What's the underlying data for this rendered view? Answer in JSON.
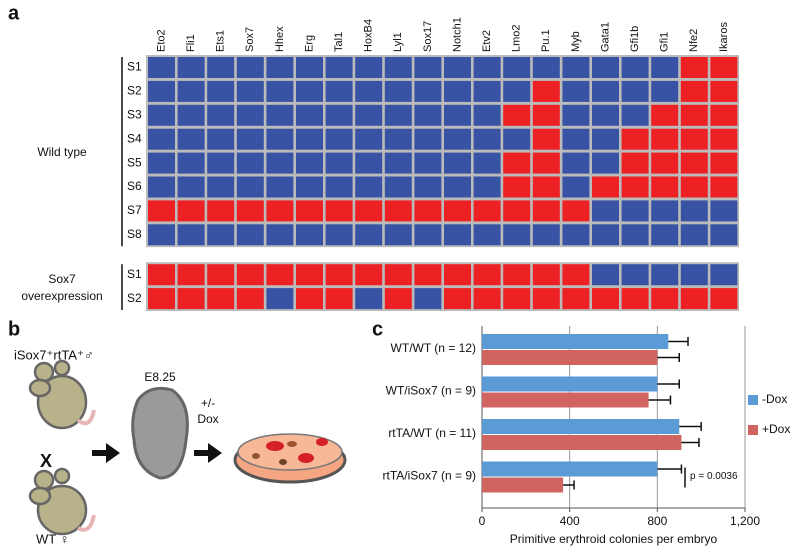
{
  "panel_a": {
    "label": "a",
    "genes": [
      "Eto2",
      "Fli1",
      "Ets1",
      "Sox7",
      "Hhex",
      "Erg",
      "Tal1",
      "HoxB4",
      "Lyl1",
      "Sox17",
      "Notch1",
      "Etv2",
      "Lmo2",
      "Pu.1",
      "Myb",
      "Gata1",
      "Gfi1b",
      "Gfi1",
      "Nfe2",
      "Ikaros"
    ],
    "groups": [
      {
        "label": [
          "Wild type"
        ],
        "rows": [
          {
            "label": "S1",
            "colors": [
              "#3953a4",
              "#3953a4",
              "#3953a4",
              "#3953a4",
              "#3953a4",
              "#3953a4",
              "#3953a4",
              "#3953a4",
              "#3953a4",
              "#3953a4",
              "#3953a4",
              "#3953a4",
              "#3953a4",
              "#3953a4",
              "#3953a4",
              "#3953a4",
              "#3953a4",
              "#3953a4",
              "#ed2024",
              "#ed2024"
            ]
          },
          {
            "label": "S2",
            "colors": [
              "#3953a4",
              "#3953a4",
              "#3953a4",
              "#3953a4",
              "#3953a4",
              "#3953a4",
              "#3953a4",
              "#3953a4",
              "#3953a4",
              "#3953a4",
              "#3953a4",
              "#3953a4",
              "#3953a4",
              "#ed2024",
              "#3953a4",
              "#3953a4",
              "#3953a4",
              "#3953a4",
              "#ed2024",
              "#ed2024"
            ]
          },
          {
            "label": "S3",
            "colors": [
              "#3953a4",
              "#3953a4",
              "#3953a4",
              "#3953a4",
              "#3953a4",
              "#3953a4",
              "#3953a4",
              "#3953a4",
              "#3953a4",
              "#3953a4",
              "#3953a4",
              "#3953a4",
              "#ed2024",
              "#ed2024",
              "#3953a4",
              "#3953a4",
              "#3953a4",
              "#ed2024",
              "#ed2024",
              "#ed2024"
            ]
          },
          {
            "label": "S4",
            "colors": [
              "#3953a4",
              "#3953a4",
              "#3953a4",
              "#3953a4",
              "#3953a4",
              "#3953a4",
              "#3953a4",
              "#3953a4",
              "#3953a4",
              "#3953a4",
              "#3953a4",
              "#3953a4",
              "#3953a4",
              "#ed2024",
              "#3953a4",
              "#3953a4",
              "#ed2024",
              "#ed2024",
              "#ed2024",
              "#ed2024"
            ]
          },
          {
            "label": "S5",
            "colors": [
              "#3953a4",
              "#3953a4",
              "#3953a4",
              "#3953a4",
              "#3953a4",
              "#3953a4",
              "#3953a4",
              "#3953a4",
              "#3953a4",
              "#3953a4",
              "#3953a4",
              "#3953a4",
              "#ed2024",
              "#ed2024",
              "#3953a4",
              "#3953a4",
              "#ed2024",
              "#ed2024",
              "#ed2024",
              "#ed2024"
            ]
          },
          {
            "label": "S6",
            "colors": [
              "#3953a4",
              "#3953a4",
              "#3953a4",
              "#3953a4",
              "#3953a4",
              "#3953a4",
              "#3953a4",
              "#3953a4",
              "#3953a4",
              "#3953a4",
              "#3953a4",
              "#3953a4",
              "#ed2024",
              "#ed2024",
              "#3953a4",
              "#ed2024",
              "#ed2024",
              "#ed2024",
              "#ed2024",
              "#ed2024"
            ]
          },
          {
            "label": "S7",
            "colors": [
              "#ed2024",
              "#ed2024",
              "#ed2024",
              "#ed2024",
              "#ed2024",
              "#ed2024",
              "#ed2024",
              "#ed2024",
              "#ed2024",
              "#ed2024",
              "#ed2024",
              "#ed2024",
              "#ed2024",
              "#ed2024",
              "#ed2024",
              "#3953a4",
              "#3953a4",
              "#3953a4",
              "#3953a4",
              "#3953a4"
            ]
          },
          {
            "label": "S8",
            "colors": [
              "#3953a4",
              "#3953a4",
              "#3953a4",
              "#3953a4",
              "#3953a4",
              "#3953a4",
              "#3953a4",
              "#3953a4",
              "#3953a4",
              "#3953a4",
              "#3953a4",
              "#3953a4",
              "#3953a4",
              "#3953a4",
              "#3953a4",
              "#3953a4",
              "#3953a4",
              "#3953a4",
              "#3953a4",
              "#3953a4"
            ]
          }
        ]
      },
      {
        "label": [
          "Sox7",
          "overexpression"
        ],
        "rows": [
          {
            "label": "S1",
            "colors": [
              "#ed2024",
              "#ed2024",
              "#ed2024",
              "#ed2024",
              "#ed2024",
              "#ed2024",
              "#ed2024",
              "#ed2024",
              "#ed2024",
              "#ed2024",
              "#ed2024",
              "#ed2024",
              "#ed2024",
              "#ed2024",
              "#ed2024",
              "#3953a4",
              "#3953a4",
              "#3953a4",
              "#3953a4",
              "#3953a4"
            ]
          },
          {
            "label": "S2",
            "colors": [
              "#ed2024",
              "#ed2024",
              "#ed2024",
              "#ed2024",
              "#3953a4",
              "#ed2024",
              "#ed2024",
              "#3953a4",
              "#ed2024",
              "#3953a4",
              "#ed2024",
              "#ed2024",
              "#ed2024",
              "#ed2024",
              "#ed2024",
              "#ed2024",
              "#ed2024",
              "#ed2024",
              "#ed2024",
              "#ed2024"
            ]
          }
        ]
      }
    ]
  },
  "panel_b": {
    "label": "b",
    "cross_parent_1": "iSox7⁺rtTA⁺♂",
    "cross_sign": "X",
    "cross_parent_2": "WT ♀",
    "stage": "E8.25",
    "treatment": [
      "+/-",
      "Dox"
    ]
  },
  "chart_data": {
    "type": "hbar",
    "panel_label": "c",
    "categories": [
      "WT/WT (n = 12)",
      "WT/iSox7 (n = 9)",
      "rtTA/WT (n = 11)",
      "rtTA/iSox7 (n = 9)"
    ],
    "series": [
      {
        "name": "-Dox",
        "color": "#5b9bd5",
        "values": [
          850,
          800,
          900,
          800
        ],
        "errors": [
          90,
          100,
          100,
          110
        ]
      },
      {
        "name": "+Dox",
        "color": "#cf6460",
        "values": [
          800,
          760,
          910,
          370
        ],
        "errors": [
          100,
          100,
          80,
          50
        ]
      }
    ],
    "xlim": [
      0,
      1200
    ],
    "xticks": [
      0,
      400,
      800,
      {
        "value": 1200,
        "label": "1,200"
      }
    ],
    "x_label": "Primitive erythroid colonies per embryo",
    "annotation": "p = 0.0036",
    "grid": true,
    "legend": "right"
  }
}
